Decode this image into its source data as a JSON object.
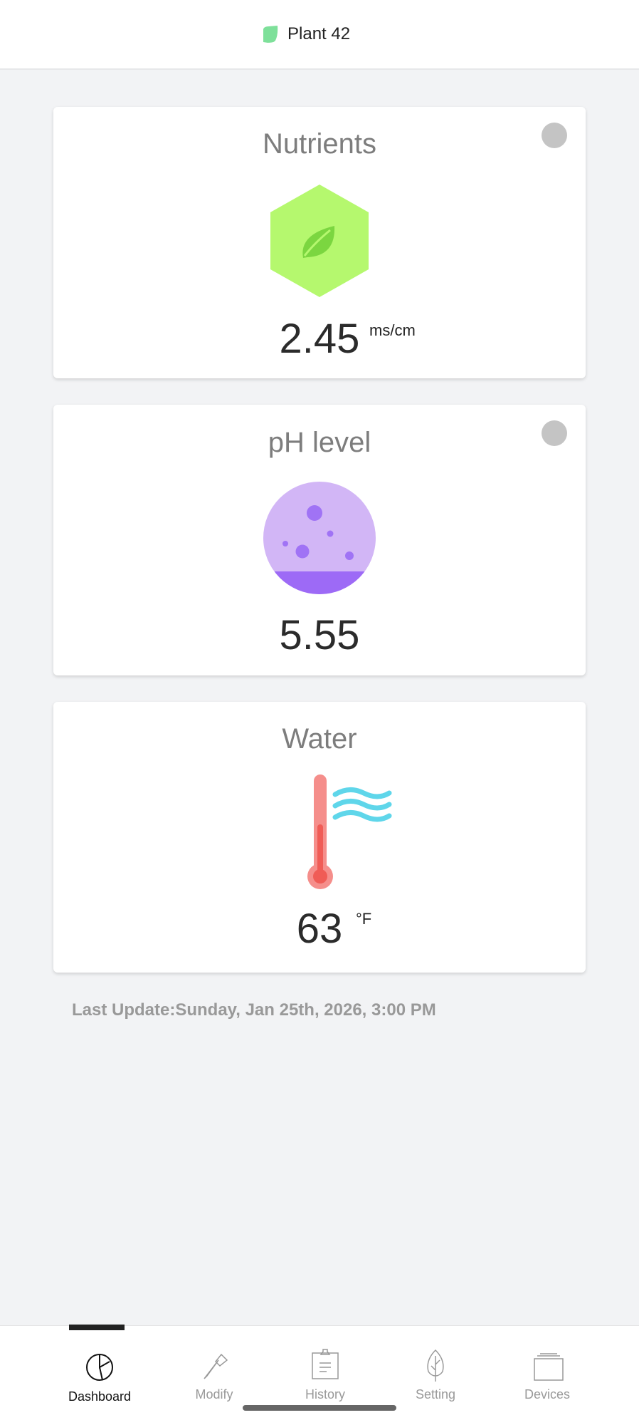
{
  "header": {
    "title": "Plant 42",
    "icon": "leaf-icon",
    "icon_color": "#7ee09a"
  },
  "cards": [
    {
      "title": "Nutrients",
      "value": "2.45",
      "unit": "ms/cm",
      "icon": "nutrient-hexagon-leaf-icon",
      "color": "#b5f86e"
    },
    {
      "title": "pH level",
      "value": "5.55",
      "icon": "ph-flask-icon",
      "color": "#d2b6f6"
    },
    {
      "title": "Water",
      "value": "63",
      "unit": "°F",
      "icon": "thermometer-water-icon",
      "color": "#f58e8b"
    }
  ],
  "last_update": "Last Update:Sunday, Jan 25th, 2026, 3:00 PM",
  "nav": {
    "active": "Dashboard",
    "items": [
      {
        "label": "Dashboard",
        "icon": "pie-chart-icon"
      },
      {
        "label": "Modify",
        "icon": "pipette-icon"
      },
      {
        "label": "History",
        "icon": "clipboard-icon"
      },
      {
        "label": "Setting",
        "icon": "leaf-outline-icon"
      },
      {
        "label": "Devices",
        "icon": "stack-icon"
      }
    ]
  }
}
